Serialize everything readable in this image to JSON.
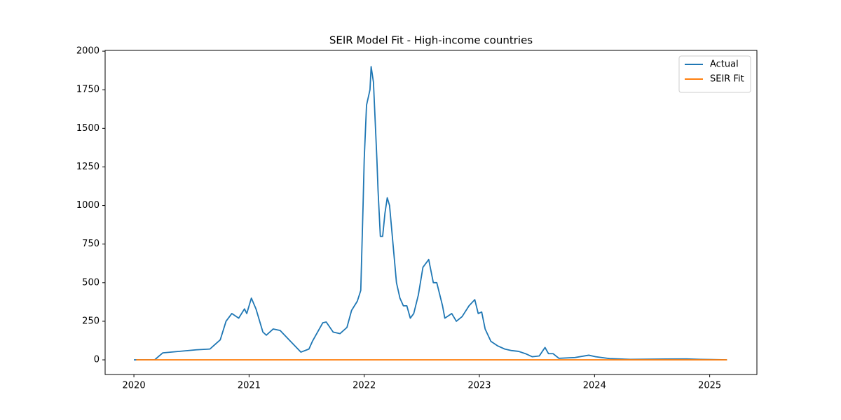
{
  "chart_data": {
    "type": "line",
    "title": "SEIR Model Fit - High-income countries",
    "series": [
      {
        "name": "Actual",
        "color": "#1f77b4",
        "x": [
          2020.0,
          2020.18,
          2020.25,
          2020.54,
          2020.66,
          2020.69,
          2020.75,
          2020.8,
          2020.85,
          2020.91,
          2020.96,
          2020.98,
          2021.02,
          2021.06,
          2021.12,
          2021.15,
          2021.21,
          2021.27,
          2021.36,
          2021.45,
          2021.52,
          2021.55,
          2021.64,
          2021.67,
          2021.73,
          2021.79,
          2021.85,
          2021.89,
          2021.94,
          2021.97,
          2021.99,
          2022.0,
          2022.02,
          2022.05,
          2022.06,
          2022.08,
          2022.11,
          2022.12,
          2022.14,
          2022.16,
          2022.18,
          2022.2,
          2022.22,
          2022.25,
          2022.28,
          2022.31,
          2022.34,
          2022.37,
          2022.4,
          2022.43,
          2022.47,
          2022.51,
          2022.54,
          2022.56,
          2022.6,
          2022.63,
          2022.68,
          2022.7,
          2022.72,
          2022.76,
          2022.8,
          2022.85,
          2022.91,
          2022.96,
          2022.99,
          2023.02,
          2023.05,
          2023.1,
          2023.16,
          2023.22,
          2023.28,
          2023.34,
          2023.4,
          2023.46,
          2023.52,
          2023.57,
          2023.6,
          2023.64,
          2023.69,
          2023.83,
          2023.95,
          2024.01,
          2024.13,
          2024.31,
          2024.62,
          2024.8,
          2024.92,
          2025.15
        ],
        "values": [
          0,
          0,
          45,
          65,
          70,
          90,
          130,
          250,
          300,
          270,
          330,
          300,
          400,
          330,
          180,
          160,
          200,
          190,
          120,
          50,
          70,
          120,
          240,
          245,
          180,
          170,
          210,
          320,
          380,
          450,
          1000,
          1300,
          1650,
          1750,
          1900,
          1800,
          1300,
          1100,
          800,
          800,
          950,
          1050,
          1000,
          750,
          500,
          400,
          350,
          350,
          270,
          300,
          420,
          600,
          630,
          650,
          500,
          500,
          350,
          270,
          280,
          300,
          250,
          280,
          350,
          390,
          300,
          310,
          200,
          120,
          90,
          70,
          60,
          55,
          40,
          20,
          25,
          80,
          40,
          40,
          10,
          15,
          30,
          20,
          8,
          3,
          5,
          6,
          3,
          0
        ]
      },
      {
        "name": "SEIR Fit",
        "color": "#ff7f0e",
        "x": [
          2020.02,
          2025.15
        ],
        "values": [
          0,
          0
        ]
      }
    ],
    "xlim": [
      2019.75,
      2025.41
    ],
    "xticks": [
      2020,
      2021,
      2022,
      2023,
      2024,
      2025
    ],
    "ylim": [
      -95,
      2005
    ],
    "yticks": [
      0,
      250,
      500,
      750,
      1000,
      1250,
      1500,
      1750,
      2000
    ],
    "legend": "upper right"
  }
}
